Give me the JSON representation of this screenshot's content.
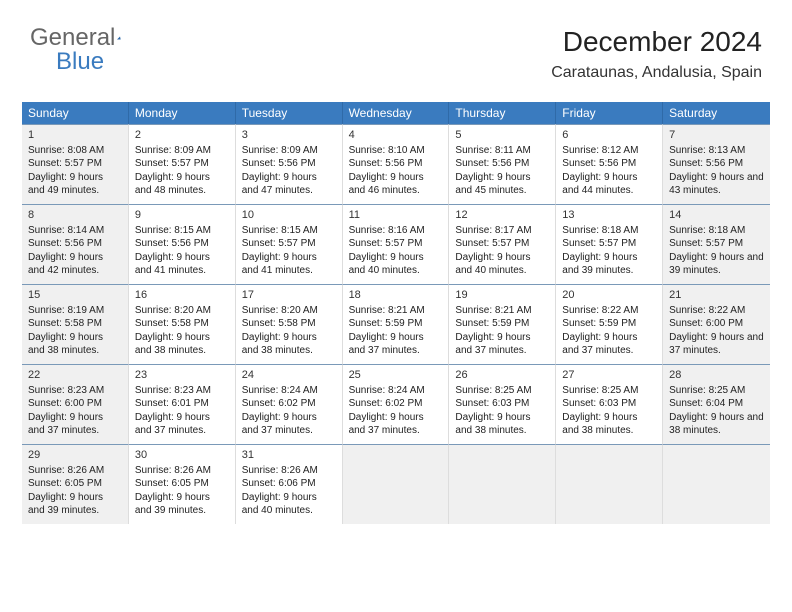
{
  "logo": {
    "part1": "General",
    "part2": "Blue"
  },
  "title": "December 2024",
  "location": "Carataunas, Andalusia, Spain",
  "colors": {
    "header_bg": "#3a7bbf",
    "header_text": "#ffffff",
    "cell_border": "#7a99b8",
    "shade_bg": "#f0f0f0",
    "text": "#222222"
  },
  "layout": {
    "columns": 7,
    "rows": 5
  },
  "weekdays": [
    "Sunday",
    "Monday",
    "Tuesday",
    "Wednesday",
    "Thursday",
    "Friday",
    "Saturday"
  ],
  "days": [
    {
      "n": 1,
      "sr": "8:08 AM",
      "ss": "5:57 PM",
      "dl": "9 hours and 49 minutes.",
      "shade": true
    },
    {
      "n": 2,
      "sr": "8:09 AM",
      "ss": "5:57 PM",
      "dl": "9 hours and 48 minutes.",
      "shade": false
    },
    {
      "n": 3,
      "sr": "8:09 AM",
      "ss": "5:56 PM",
      "dl": "9 hours and 47 minutes.",
      "shade": false
    },
    {
      "n": 4,
      "sr": "8:10 AM",
      "ss": "5:56 PM",
      "dl": "9 hours and 46 minutes.",
      "shade": false
    },
    {
      "n": 5,
      "sr": "8:11 AM",
      "ss": "5:56 PM",
      "dl": "9 hours and 45 minutes.",
      "shade": false
    },
    {
      "n": 6,
      "sr": "8:12 AM",
      "ss": "5:56 PM",
      "dl": "9 hours and 44 minutes.",
      "shade": false
    },
    {
      "n": 7,
      "sr": "8:13 AM",
      "ss": "5:56 PM",
      "dl": "9 hours and 43 minutes.",
      "shade": true
    },
    {
      "n": 8,
      "sr": "8:14 AM",
      "ss": "5:56 PM",
      "dl": "9 hours and 42 minutes.",
      "shade": true
    },
    {
      "n": 9,
      "sr": "8:15 AM",
      "ss": "5:56 PM",
      "dl": "9 hours and 41 minutes.",
      "shade": false
    },
    {
      "n": 10,
      "sr": "8:15 AM",
      "ss": "5:57 PM",
      "dl": "9 hours and 41 minutes.",
      "shade": false
    },
    {
      "n": 11,
      "sr": "8:16 AM",
      "ss": "5:57 PM",
      "dl": "9 hours and 40 minutes.",
      "shade": false
    },
    {
      "n": 12,
      "sr": "8:17 AM",
      "ss": "5:57 PM",
      "dl": "9 hours and 40 minutes.",
      "shade": false
    },
    {
      "n": 13,
      "sr": "8:18 AM",
      "ss": "5:57 PM",
      "dl": "9 hours and 39 minutes.",
      "shade": false
    },
    {
      "n": 14,
      "sr": "8:18 AM",
      "ss": "5:57 PM",
      "dl": "9 hours and 39 minutes.",
      "shade": true
    },
    {
      "n": 15,
      "sr": "8:19 AM",
      "ss": "5:58 PM",
      "dl": "9 hours and 38 minutes.",
      "shade": true
    },
    {
      "n": 16,
      "sr": "8:20 AM",
      "ss": "5:58 PM",
      "dl": "9 hours and 38 minutes.",
      "shade": false
    },
    {
      "n": 17,
      "sr": "8:20 AM",
      "ss": "5:58 PM",
      "dl": "9 hours and 38 minutes.",
      "shade": false
    },
    {
      "n": 18,
      "sr": "8:21 AM",
      "ss": "5:59 PM",
      "dl": "9 hours and 37 minutes.",
      "shade": false
    },
    {
      "n": 19,
      "sr": "8:21 AM",
      "ss": "5:59 PM",
      "dl": "9 hours and 37 minutes.",
      "shade": false
    },
    {
      "n": 20,
      "sr": "8:22 AM",
      "ss": "5:59 PM",
      "dl": "9 hours and 37 minutes.",
      "shade": false
    },
    {
      "n": 21,
      "sr": "8:22 AM",
      "ss": "6:00 PM",
      "dl": "9 hours and 37 minutes.",
      "shade": true
    },
    {
      "n": 22,
      "sr": "8:23 AM",
      "ss": "6:00 PM",
      "dl": "9 hours and 37 minutes.",
      "shade": true
    },
    {
      "n": 23,
      "sr": "8:23 AM",
      "ss": "6:01 PM",
      "dl": "9 hours and 37 minutes.",
      "shade": false
    },
    {
      "n": 24,
      "sr": "8:24 AM",
      "ss": "6:02 PM",
      "dl": "9 hours and 37 minutes.",
      "shade": false
    },
    {
      "n": 25,
      "sr": "8:24 AM",
      "ss": "6:02 PM",
      "dl": "9 hours and 37 minutes.",
      "shade": false
    },
    {
      "n": 26,
      "sr": "8:25 AM",
      "ss": "6:03 PM",
      "dl": "9 hours and 38 minutes.",
      "shade": false
    },
    {
      "n": 27,
      "sr": "8:25 AM",
      "ss": "6:03 PM",
      "dl": "9 hours and 38 minutes.",
      "shade": false
    },
    {
      "n": 28,
      "sr": "8:25 AM",
      "ss": "6:04 PM",
      "dl": "9 hours and 38 minutes.",
      "shade": true
    },
    {
      "n": 29,
      "sr": "8:26 AM",
      "ss": "6:05 PM",
      "dl": "9 hours and 39 minutes.",
      "shade": true
    },
    {
      "n": 30,
      "sr": "8:26 AM",
      "ss": "6:05 PM",
      "dl": "9 hours and 39 minutes.",
      "shade": false
    },
    {
      "n": 31,
      "sr": "8:26 AM",
      "ss": "6:06 PM",
      "dl": "9 hours and 40 minutes.",
      "shade": false
    }
  ],
  "labels": {
    "sunrise": "Sunrise:",
    "sunset": "Sunset:",
    "daylight": "Daylight:"
  },
  "trailing_empty": 4
}
